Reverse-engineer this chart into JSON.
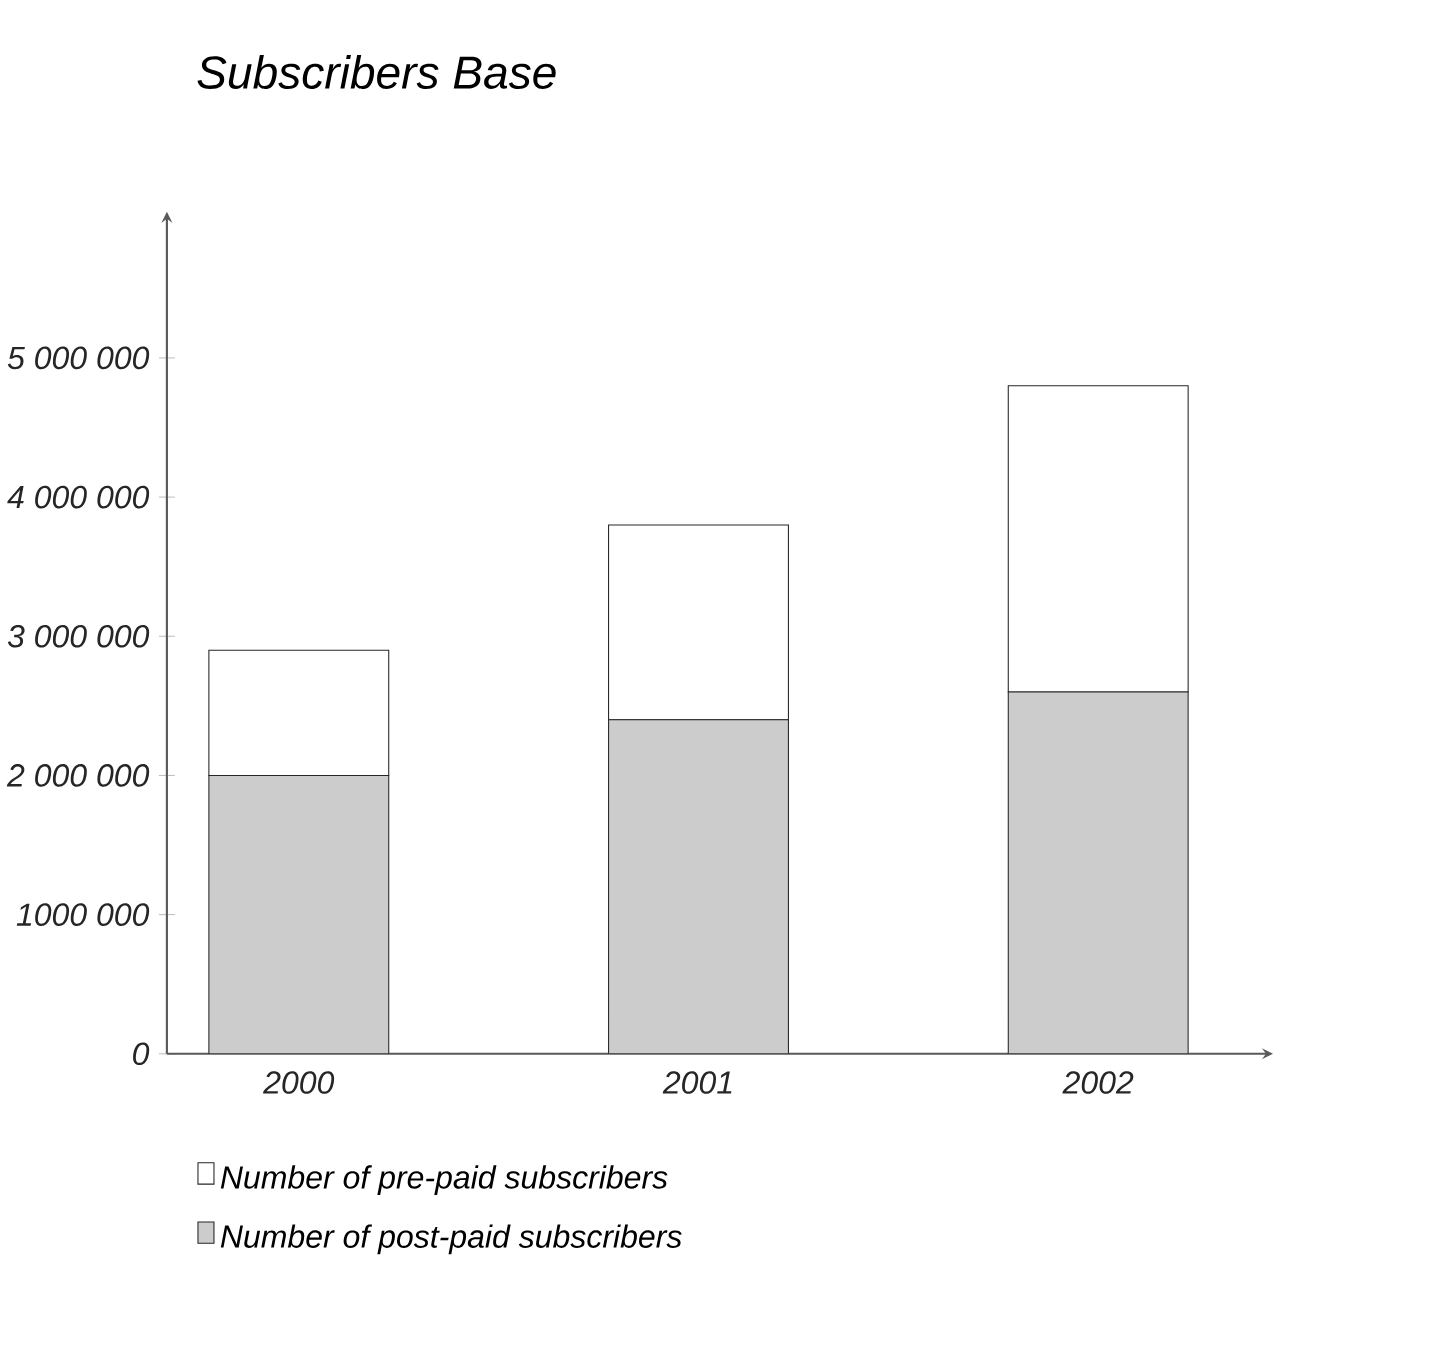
{
  "chart_data": {
    "type": "bar",
    "stacked": true,
    "title": "Subscribers Base",
    "categories": [
      "2000",
      "2001",
      "2002"
    ],
    "series": [
      {
        "name": "Number of post-paid subscribers",
        "color": "#cccccc",
        "values": [
          2000000,
          2400000,
          2600000
        ]
      },
      {
        "name": "Number of pre-paid subscribers",
        "color": "#ffffff",
        "values": [
          900000,
          1400000,
          2200000
        ]
      }
    ],
    "ylim": [
      0,
      6000000
    ],
    "yticks": [
      0,
      {
        "value": 1000000,
        "label": "1000 000"
      },
      {
        "value": 2000000,
        "label": "2 000 000"
      },
      {
        "value": 3000000,
        "label": "3 000 000"
      },
      {
        "value": 4000000,
        "label": "4 000 000"
      },
      {
        "value": 5000000,
        "label": "5 000 000"
      }
    ],
    "grid": false,
    "legend": "bottom"
  }
}
